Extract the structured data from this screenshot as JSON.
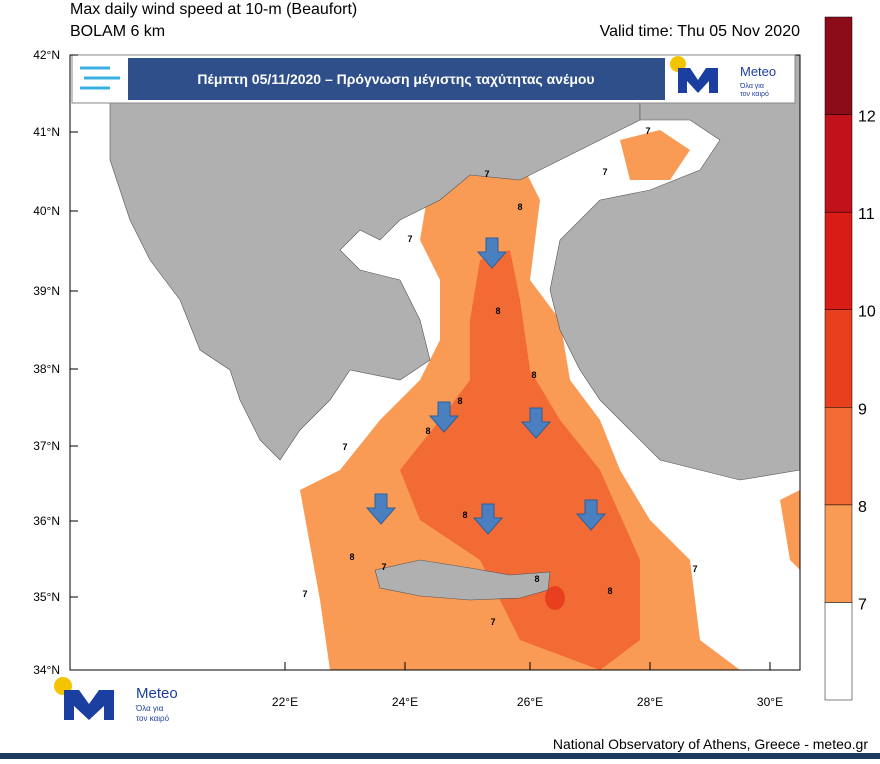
{
  "header": {
    "title": "Max daily wind speed at 10-m (Beaufort)",
    "model": "BOLAM 6 km",
    "valid_time": "Valid time: Thu 05 Nov 2020"
  },
  "banner": {
    "text": "Πέμπτη 05/11/2020 – Πρόγνωση μέγιστης ταχύτητας ανέμου",
    "logo_name": "Meteo",
    "logo_slogan_1": "Όλα για",
    "logo_slogan_2": "τον καιρό"
  },
  "map": {
    "lat_labels": [
      "42°N",
      "41°N",
      "40°N",
      "39°N",
      "38°N",
      "37°N",
      "36°N",
      "35°N",
      "34°N"
    ],
    "lon_labels": [
      "22°E",
      "24°E",
      "26°E",
      "28°E",
      "30°E"
    ],
    "contour_labels": [
      7,
      7,
      7,
      8,
      8,
      8,
      8,
      8,
      8,
      8,
      8,
      7,
      7,
      7,
      7,
      8,
      7,
      7
    ]
  },
  "colorbar": {
    "labels": [
      7,
      8,
      9,
      10,
      11,
      12
    ],
    "colors": [
      "#ffffff",
      "#f99a55",
      "#f26a34",
      "#e8401f",
      "#d91d16",
      "#c1111b",
      "#8c0b19"
    ]
  },
  "footer": {
    "logo_name": "Meteo",
    "logo_slogan_1": "Όλα για",
    "logo_slogan_2": "τον καιρό",
    "credit": "National Observatory of Athens, Greece - meteo.gr"
  }
}
